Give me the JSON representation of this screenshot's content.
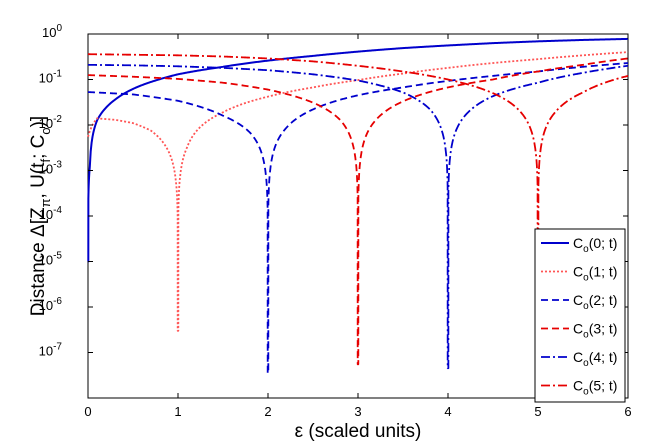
{
  "chart_data": {
    "type": "line",
    "xlabel": "ε (scaled units)",
    "ylabel": "Distance Δ[Z_π, U(t_f; C_o)]",
    "xlim": [
      0,
      6
    ],
    "ylim": [
      1e-08,
      1
    ],
    "yscale": "log",
    "grid": false,
    "legend_position": "right",
    "x_ticks": [
      "0",
      "1",
      "2",
      "3",
      "4",
      "5",
      "6"
    ],
    "y_ticks": [
      "10^0",
      "10^-1",
      "10^-2",
      "10^-3",
      "10^-4",
      "10^-5",
      "10^-6",
      "10^-7"
    ],
    "series": [
      {
        "name": "C_o(0; t)",
        "color": "#0000cc",
        "style": "solid",
        "zero_at": 0,
        "floor": 1e-05,
        "x": [
          0.0,
          0.02,
          0.05,
          0.1,
          0.2,
          0.3,
          0.5,
          0.75,
          1.0,
          1.5,
          2.0,
          2.5,
          3.0,
          3.5,
          4.0,
          4.5,
          5.0,
          5.5,
          6.0
        ],
        "y": [
          0.0,
          0.0012,
          0.0055,
          0.0125,
          0.024,
          0.036,
          0.062,
          0.095,
          0.13,
          0.19,
          0.26,
          0.33,
          0.41,
          0.49,
          0.56,
          0.63,
          0.69,
          0.74,
          0.78
        ]
      },
      {
        "name": "C_o(1; t)",
        "color": "#ff5555",
        "style": "dotted",
        "zero_at": 1,
        "floor": 3e-07,
        "x": [
          0.0,
          0.05,
          0.1,
          0.3,
          0.5,
          0.7,
          0.9,
          1.0,
          1.1,
          1.5,
          2.0,
          2.5,
          3.0,
          3.5,
          4.0,
          4.5,
          5.0,
          5.5,
          6.0
        ],
        "y": [
          0.0055,
          0.01,
          0.014,
          0.013,
          0.011,
          0.0075,
          0.0025,
          0.0,
          0.0032,
          0.019,
          0.042,
          0.067,
          0.097,
          0.135,
          0.18,
          0.23,
          0.28,
          0.34,
          0.4
        ]
      },
      {
        "name": "C_o(2; t)",
        "color": "#0000cc",
        "style": "dashed",
        "zero_at": 2,
        "floor": 3.5e-08,
        "x": [
          0.0,
          0.5,
          1.0,
          1.5,
          1.8,
          2.0,
          2.2,
          2.5,
          3.0,
          3.5,
          4.0,
          4.5,
          5.0,
          5.5,
          6.0
        ],
        "y": [
          0.053,
          0.047,
          0.034,
          0.016,
          0.0068,
          0.0,
          0.0085,
          0.022,
          0.045,
          0.067,
          0.093,
          0.12,
          0.15,
          0.19,
          0.23
        ]
      },
      {
        "name": "C_o(3; t)",
        "color": "#e60000",
        "style": "dashed",
        "zero_at": 3,
        "floor": 5.5e-08,
        "x": [
          0.0,
          0.5,
          1.0,
          1.5,
          2.0,
          2.5,
          2.8,
          3.0,
          3.2,
          3.5,
          4.0,
          4.5,
          5.0,
          5.5,
          6.0
        ],
        "y": [
          0.125,
          0.115,
          0.103,
          0.085,
          0.06,
          0.031,
          0.013,
          0.0,
          0.013,
          0.033,
          0.067,
          0.1,
          0.15,
          0.21,
          0.29
        ]
      },
      {
        "name": "C_o(4; t)",
        "color": "#0000cc",
        "style": "dashdot",
        "zero_at": 4,
        "floor": 4.5e-08,
        "x": [
          0.0,
          0.5,
          1.0,
          1.5,
          2.0,
          2.5,
          3.0,
          3.5,
          3.8,
          4.0,
          4.2,
          4.5,
          5.0,
          5.5,
          6.0
        ],
        "y": [
          0.21,
          0.205,
          0.195,
          0.18,
          0.16,
          0.13,
          0.095,
          0.052,
          0.022,
          0.0,
          0.017,
          0.043,
          0.085,
          0.14,
          0.2
        ]
      },
      {
        "name": "C_o(5; t)",
        "color": "#e60000",
        "style": "dashdot",
        "zero_at": 5,
        "floor": 3e-08,
        "x": [
          0.0,
          0.5,
          1.0,
          1.5,
          2.0,
          2.5,
          3.0,
          3.5,
          4.0,
          4.5,
          4.8,
          5.0,
          5.2,
          5.5,
          6.0
        ],
        "y": [
          0.36,
          0.35,
          0.34,
          0.32,
          0.29,
          0.25,
          0.2,
          0.15,
          0.1,
          0.05,
          0.02,
          0.0,
          0.02,
          0.052,
          0.12
        ]
      }
    ]
  }
}
